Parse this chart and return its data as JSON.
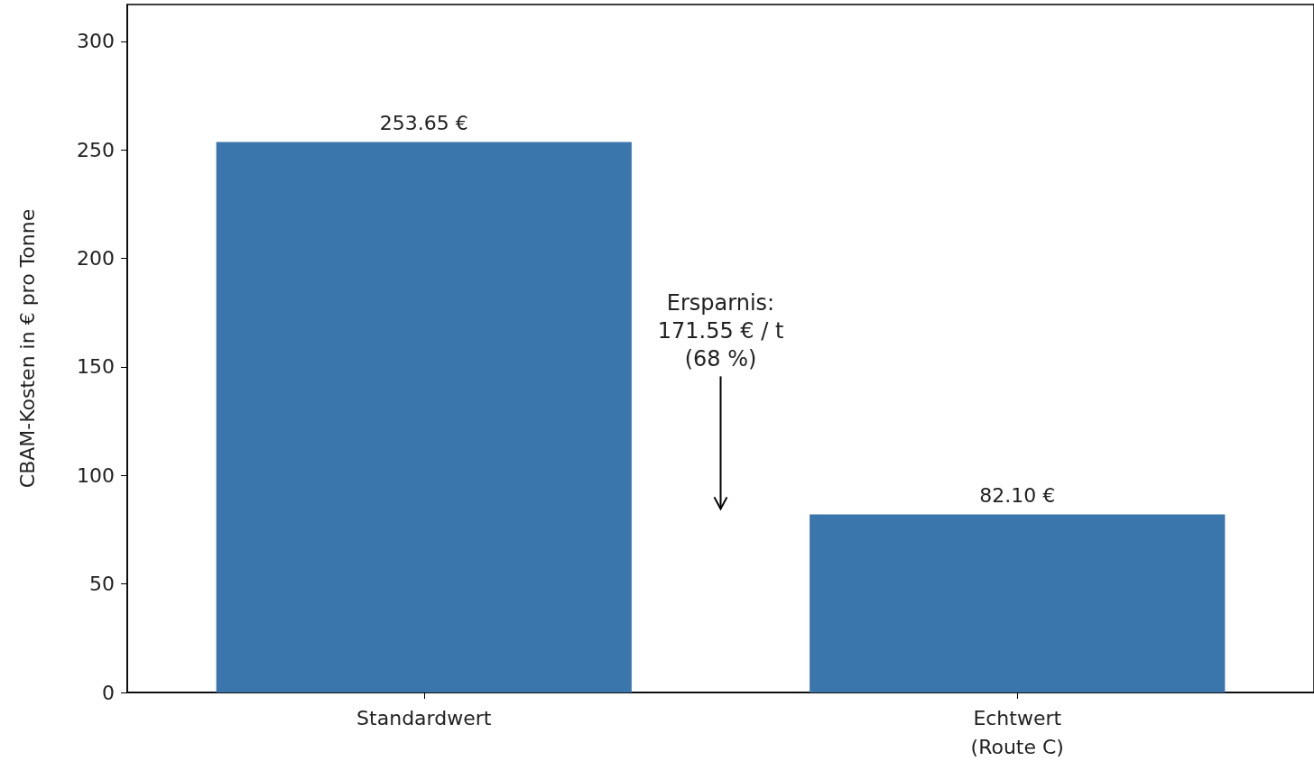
{
  "chart_data": {
    "type": "bar",
    "ylabel": "CBAM-Kosten in € pro Tonne",
    "categories": [
      "Standardwert",
      "Echtwert\n(Route C)"
    ],
    "values": [
      253.65,
      82.1
    ],
    "color": "#3a76ac",
    "value_labels": [
      "253.65 €",
      "82.10 €"
    ],
    "ylim": [
      0,
      317
    ],
    "yticks": [
      0,
      50,
      100,
      150,
      200,
      250,
      300
    ],
    "grid": false,
    "annotations": [
      "Ersparnis:\n171.55 € / t\n(68 %)"
    ]
  }
}
